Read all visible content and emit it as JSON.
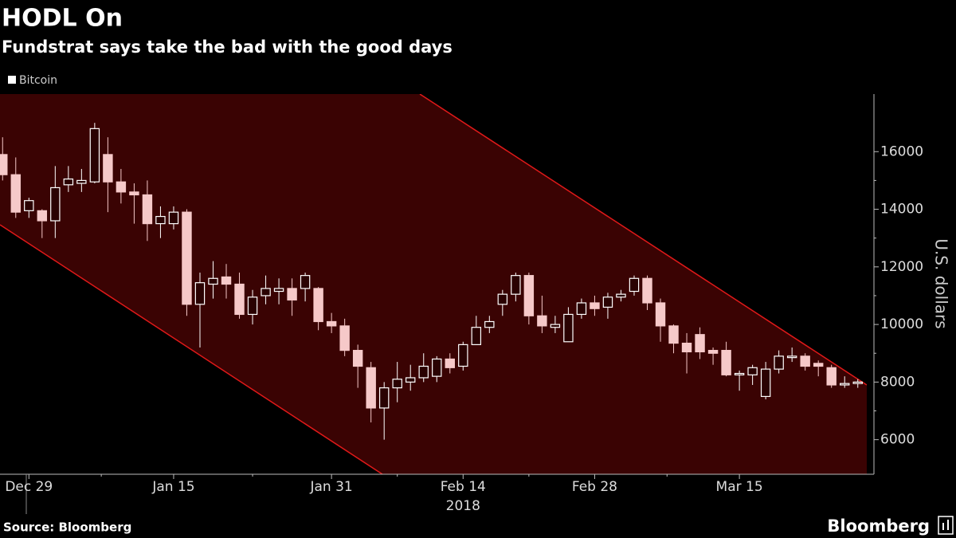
{
  "chart_data": {
    "type": "candlestick",
    "title": "HODL On",
    "subtitle": "Fundstrat says take the bad with the good days",
    "y_axis_label": "U.S. dollars",
    "source": "Source: Bloomberg",
    "brand": "Bloomberg",
    "year_label": "2018",
    "categories": [
      null,
      null,
      "Dec 29",
      null,
      null,
      null,
      null,
      null,
      null,
      null,
      null,
      null,
      null,
      "Jan 15",
      null,
      null,
      null,
      null,
      null,
      null,
      null,
      null,
      null,
      null,
      null,
      "Jan 31",
      null,
      null,
      null,
      null,
      null,
      null,
      null,
      null,
      null,
      "Feb 14",
      null,
      null,
      null,
      null,
      null,
      null,
      null,
      null,
      null,
      "Feb 28",
      null,
      null,
      null,
      null,
      null,
      null,
      null,
      null,
      null,
      null,
      "Mar 15",
      null,
      null,
      null,
      null,
      null,
      null,
      null,
      null,
      null
    ],
    "series": [
      {
        "name": "Bitcoin",
        "up_color": "#ffffff",
        "down_color": "#f6c9c9",
        "open": [
          15900,
          15200,
          13950,
          13950,
          13600,
          14850,
          14900,
          14950,
          15900,
          14950,
          14600,
          14500,
          13500,
          13500,
          13900,
          10700,
          11400,
          11650,
          11400,
          10350,
          11000,
          11150,
          11250,
          11250,
          11250,
          10100,
          9950,
          9100,
          8500,
          7100,
          7800,
          8000,
          8150,
          8200,
          8800,
          8550,
          9300,
          9900,
          10700,
          11050,
          11700,
          10300,
          9900,
          9400,
          10350,
          10750,
          10600,
          10950,
          11150,
          11600,
          10750,
          9950,
          9350,
          9650,
          9100,
          9100,
          8250,
          8250,
          7500,
          8450,
          8850,
          8900,
          8650,
          8500,
          7900,
          7950
        ],
        "high": [
          16500,
          15800,
          14400,
          14000,
          15500,
          15500,
          15400,
          17000,
          16500,
          15400,
          14900,
          15000,
          14100,
          14100,
          14000,
          11800,
          12200,
          12100,
          11800,
          11200,
          11700,
          11600,
          11600,
          11800,
          11300,
          10400,
          10200,
          9300,
          8700,
          8000,
          8700,
          8600,
          9000,
          8900,
          9000,
          9400,
          10300,
          10300,
          11200,
          11800,
          11800,
          11000,
          10300,
          10600,
          10900,
          11000,
          11100,
          11200,
          11700,
          11700,
          10900,
          10000,
          9700,
          9900,
          9200,
          9400,
          8400,
          8600,
          8700,
          9100,
          9200,
          9000,
          8750,
          8600,
          8200,
          8100
        ],
        "low": [
          15000,
          13700,
          13700,
          13000,
          13000,
          14600,
          14600,
          14900,
          13900,
          14200,
          13500,
          12900,
          13000,
          13300,
          10300,
          9200,
          10900,
          10900,
          10200,
          10000,
          10700,
          10700,
          10300,
          10800,
          9800,
          9700,
          8900,
          7800,
          6600,
          6000,
          7300,
          7700,
          8000,
          8000,
          8300,
          8400,
          9300,
          9700,
          10300,
          10800,
          10000,
          9700,
          9700,
          9400,
          10200,
          10300,
          10200,
          10800,
          11000,
          10500,
          9400,
          9000,
          8300,
          8800,
          8600,
          8200,
          7700,
          7900,
          7400,
          8300,
          8700,
          8400,
          8200,
          7800,
          7800,
          7800
        ],
        "close": [
          15200,
          13900,
          14300,
          13600,
          14750,
          15050,
          15000,
          16800,
          14950,
          14600,
          14500,
          13500,
          13750,
          13900,
          10700,
          11450,
          11600,
          11400,
          10350,
          10950,
          11250,
          11250,
          10850,
          11700,
          10100,
          9950,
          9100,
          8550,
          7100,
          7800,
          8100,
          8150,
          8550,
          8800,
          8500,
          9300,
          9900,
          10100,
          11050,
          11700,
          10300,
          9950,
          10000,
          10350,
          10750,
          10550,
          10950,
          11050,
          11600,
          10750,
          9950,
          9350,
          9050,
          9050,
          9000,
          8250,
          8300,
          8500,
          8450,
          8900,
          8900,
          8550,
          8550,
          7900,
          7950,
          8000
        ]
      }
    ],
    "ylim": [
      4800,
      18000
    ],
    "yticks": [
      6000,
      8000,
      10000,
      12000,
      14000,
      16000
    ],
    "y_axis_side": "right",
    "background": "#000000"
  }
}
